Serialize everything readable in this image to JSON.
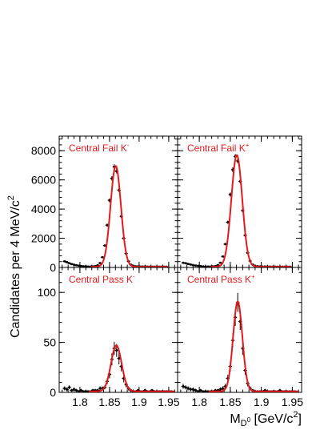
{
  "figure": {
    "ylabel": "Candidates per 4 MeV/c",
    "ylabel_sup": "2",
    "xlabel_main": "M",
    "xlabel_sub": "D",
    "xlabel_subsup": "0",
    "xlabel_unit_open": " [GeV/c",
    "xlabel_unit_sup": "2",
    "xlabel_unit_close": "]"
  },
  "chart_data": [
    {
      "type": "scatter",
      "title": "Central Fail K",
      "title_sup": "-",
      "xlim": [
        1.765,
        1.965
      ],
      "ylim": [
        0,
        9000
      ],
      "yticks": [
        0,
        2000,
        4000,
        6000,
        8000
      ],
      "ytick_labels": [
        "0",
        "2000",
        "4000",
        "6000",
        "8000"
      ],
      "xticks": [
        1.8,
        1.85,
        1.9,
        1.95
      ],
      "xtick_labels": [],
      "grid": false,
      "points": [
        [
          1.774,
          420
        ],
        [
          1.778,
          360
        ],
        [
          1.782,
          290
        ],
        [
          1.786,
          230
        ],
        [
          1.79,
          190
        ],
        [
          1.794,
          150
        ],
        [
          1.798,
          120
        ],
        [
          1.802,
          100
        ],
        [
          1.806,
          80
        ],
        [
          1.81,
          70
        ],
        [
          1.814,
          60
        ],
        [
          1.818,
          60
        ],
        [
          1.822,
          70
        ],
        [
          1.826,
          90
        ],
        [
          1.83,
          150
        ],
        [
          1.834,
          300
        ],
        [
          1.838,
          700
        ],
        [
          1.842,
          1500
        ],
        [
          1.846,
          2900
        ],
        [
          1.85,
          4600
        ],
        [
          1.854,
          6100
        ],
        [
          1.858,
          6900
        ],
        [
          1.862,
          6600
        ],
        [
          1.866,
          5300
        ],
        [
          1.87,
          3500
        ],
        [
          1.874,
          2000
        ],
        [
          1.878,
          950
        ],
        [
          1.882,
          420
        ],
        [
          1.886,
          190
        ],
        [
          1.89,
          110
        ],
        [
          1.894,
          80
        ],
        [
          1.898,
          70
        ],
        [
          1.902,
          60
        ],
        [
          1.906,
          60
        ],
        [
          1.91,
          55
        ],
        [
          1.914,
          55
        ],
        [
          1.918,
          50
        ],
        [
          1.922,
          50
        ],
        [
          1.926,
          50
        ],
        [
          1.93,
          50
        ],
        [
          1.934,
          50
        ],
        [
          1.938,
          50
        ],
        [
          1.942,
          50
        ],
        [
          1.946,
          50
        ]
      ],
      "fit": {
        "mean": 1.8605,
        "sigma": 0.0088,
        "amplitude": 6900,
        "background": 50,
        "fit_start": 1.818,
        "fit_end": 1.948
      }
    },
    {
      "type": "scatter",
      "title": "Central Fail K",
      "title_sup": "+",
      "xlim": [
        1.765,
        1.965
      ],
      "ylim": [
        0,
        9000
      ],
      "yticks": [
        0,
        2000,
        4000,
        6000,
        8000
      ],
      "ytick_labels": [],
      "xticks": [
        1.8,
        1.85,
        1.9,
        1.95
      ],
      "xtick_labels": [],
      "grid": false,
      "points": [
        [
          1.774,
          320
        ],
        [
          1.778,
          290
        ],
        [
          1.782,
          240
        ],
        [
          1.786,
          200
        ],
        [
          1.79,
          160
        ],
        [
          1.794,
          130
        ],
        [
          1.798,
          110
        ],
        [
          1.802,
          90
        ],
        [
          1.806,
          70
        ],
        [
          1.81,
          60
        ],
        [
          1.814,
          60
        ],
        [
          1.818,
          60
        ],
        [
          1.822,
          70
        ],
        [
          1.826,
          90
        ],
        [
          1.83,
          160
        ],
        [
          1.834,
          320
        ],
        [
          1.838,
          750
        ],
        [
          1.842,
          1600
        ],
        [
          1.846,
          3100
        ],
        [
          1.85,
          5000
        ],
        [
          1.854,
          6700
        ],
        [
          1.858,
          7600
        ],
        [
          1.862,
          7300
        ],
        [
          1.866,
          5900
        ],
        [
          1.87,
          3900
        ],
        [
          1.874,
          2200
        ],
        [
          1.878,
          1000
        ],
        [
          1.882,
          440
        ],
        [
          1.886,
          200
        ],
        [
          1.89,
          110
        ],
        [
          1.894,
          80
        ],
        [
          1.898,
          70
        ],
        [
          1.902,
          60
        ],
        [
          1.906,
          60
        ],
        [
          1.91,
          55
        ],
        [
          1.914,
          55
        ],
        [
          1.918,
          50
        ],
        [
          1.922,
          50
        ],
        [
          1.926,
          50
        ],
        [
          1.93,
          50
        ],
        [
          1.934,
          50
        ],
        [
          1.938,
          50
        ],
        [
          1.942,
          50
        ],
        [
          1.946,
          50
        ]
      ],
      "fit": {
        "mean": 1.8605,
        "sigma": 0.0088,
        "amplitude": 7650,
        "background": 50,
        "fit_start": 1.818,
        "fit_end": 1.948
      }
    },
    {
      "type": "scatter",
      "title": "Central Pass K",
      "title_sup": "-",
      "xlim": [
        1.765,
        1.965
      ],
      "ylim": [
        0,
        125
      ],
      "yticks": [
        0,
        50,
        100
      ],
      "ytick_labels": [
        "0",
        "50",
        "100"
      ],
      "xticks": [
        1.8,
        1.85,
        1.9,
        1.95
      ],
      "xtick_labels": [
        "1.8",
        "1.85",
        "1.9",
        "1.95"
      ],
      "grid": false,
      "points": [
        [
          1.774,
          4,
          2
        ],
        [
          1.778,
          3,
          2
        ],
        [
          1.782,
          5,
          2
        ],
        [
          1.786,
          2,
          1.5
        ],
        [
          1.79,
          3,
          2
        ],
        [
          1.794,
          2,
          1.5
        ],
        [
          1.798,
          1,
          1
        ],
        [
          1.802,
          2,
          1.5
        ],
        [
          1.806,
          1,
          1
        ],
        [
          1.81,
          1,
          1
        ],
        [
          1.814,
          1,
          1
        ],
        [
          1.818,
          1,
          1
        ],
        [
          1.822,
          2,
          1.5
        ],
        [
          1.826,
          2,
          1.5
        ],
        [
          1.83,
          2,
          1.5
        ],
        [
          1.834,
          4,
          2
        ],
        [
          1.838,
          4,
          2
        ],
        [
          1.842,
          5,
          2
        ],
        [
          1.846,
          11,
          3
        ],
        [
          1.85,
          18,
          4
        ],
        [
          1.854,
          33,
          6
        ],
        [
          1.858,
          44,
          6.5
        ],
        [
          1.862,
          42,
          6.5
        ],
        [
          1.866,
          34,
          6
        ],
        [
          1.87,
          26,
          5
        ],
        [
          1.874,
          14,
          4
        ],
        [
          1.878,
          8,
          3
        ],
        [
          1.882,
          4,
          2
        ],
        [
          1.886,
          2,
          1.5
        ],
        [
          1.89,
          1,
          1
        ],
        [
          1.894,
          1,
          1
        ],
        [
          1.898,
          2,
          1.5
        ],
        [
          1.902,
          1,
          1
        ],
        [
          1.906,
          1,
          1
        ],
        [
          1.91,
          2,
          1.5
        ],
        [
          1.914,
          1,
          1
        ],
        [
          1.918,
          1,
          1
        ],
        [
          1.922,
          2,
          1.5
        ],
        [
          1.926,
          1,
          1
        ],
        [
          1.93,
          1,
          1
        ],
        [
          1.934,
          1,
          1
        ],
        [
          1.938,
          1,
          1
        ],
        [
          1.942,
          1,
          1
        ],
        [
          1.946,
          1,
          1
        ],
        [
          1.95,
          1,
          1
        ],
        [
          1.954,
          1,
          1
        ]
      ],
      "fit": {
        "mean": 1.8615,
        "sigma": 0.009,
        "amplitude": 46,
        "background": 1,
        "fit_start": 1.815,
        "fit_end": 1.96
      }
    },
    {
      "type": "scatter",
      "title": "Central Pass K",
      "title_sup": "+",
      "xlim": [
        1.765,
        1.965
      ],
      "ylim": [
        0,
        125
      ],
      "yticks": [
        0,
        50,
        100
      ],
      "ytick_labels": [],
      "xticks": [
        1.8,
        1.85,
        1.9,
        1.95
      ],
      "xtick_labels": [
        "1.8",
        "1.85",
        "1.9",
        "1.95"
      ],
      "grid": false,
      "points": [
        [
          1.774,
          6,
          2.5
        ],
        [
          1.778,
          5,
          2
        ],
        [
          1.782,
          4,
          2
        ],
        [
          1.786,
          3,
          2
        ],
        [
          1.79,
          3,
          2
        ],
        [
          1.794,
          2,
          1.5
        ],
        [
          1.798,
          1,
          1
        ],
        [
          1.802,
          2,
          1.5
        ],
        [
          1.806,
          1,
          1
        ],
        [
          1.81,
          1,
          1
        ],
        [
          1.814,
          1,
          1
        ],
        [
          1.818,
          1,
          1
        ],
        [
          1.822,
          1,
          1
        ],
        [
          1.826,
          2,
          1.5
        ],
        [
          1.83,
          2,
          1.5
        ],
        [
          1.834,
          3,
          2
        ],
        [
          1.838,
          4,
          2
        ],
        [
          1.842,
          6,
          2.5
        ],
        [
          1.846,
          14,
          3.5
        ],
        [
          1.85,
          26,
          5
        ],
        [
          1.854,
          52,
          7
        ],
        [
          1.858,
          75,
          8.5
        ],
        [
          1.862,
          90,
          9.5
        ],
        [
          1.866,
          71,
          8.5
        ],
        [
          1.87,
          44,
          6.5
        ],
        [
          1.874,
          22,
          4.5
        ],
        [
          1.878,
          9,
          3
        ],
        [
          1.882,
          4,
          2
        ],
        [
          1.886,
          2,
          1.5
        ],
        [
          1.89,
          1,
          1
        ],
        [
          1.894,
          1,
          1
        ],
        [
          1.898,
          1,
          1
        ],
        [
          1.902,
          1,
          1
        ],
        [
          1.906,
          2,
          1.5
        ],
        [
          1.91,
          1,
          1
        ],
        [
          1.914,
          1,
          1
        ],
        [
          1.918,
          1,
          1
        ],
        [
          1.922,
          1,
          1
        ],
        [
          1.926,
          1,
          1
        ],
        [
          1.93,
          2,
          1.5
        ],
        [
          1.934,
          1,
          1
        ],
        [
          1.938,
          1,
          1
        ],
        [
          1.942,
          1,
          1
        ],
        [
          1.946,
          1,
          1
        ],
        [
          1.95,
          1,
          1
        ],
        [
          1.954,
          1,
          1
        ]
      ],
      "fit": {
        "mean": 1.862,
        "sigma": 0.0075,
        "amplitude": 90,
        "background": 1,
        "fit_start": 1.815,
        "fit_end": 1.96
      }
    }
  ],
  "style": {
    "fit_color": "#e41a1c",
    "title_color": "#e41a1c",
    "marker_color": "#000000",
    "frame_color": "#000000"
  }
}
